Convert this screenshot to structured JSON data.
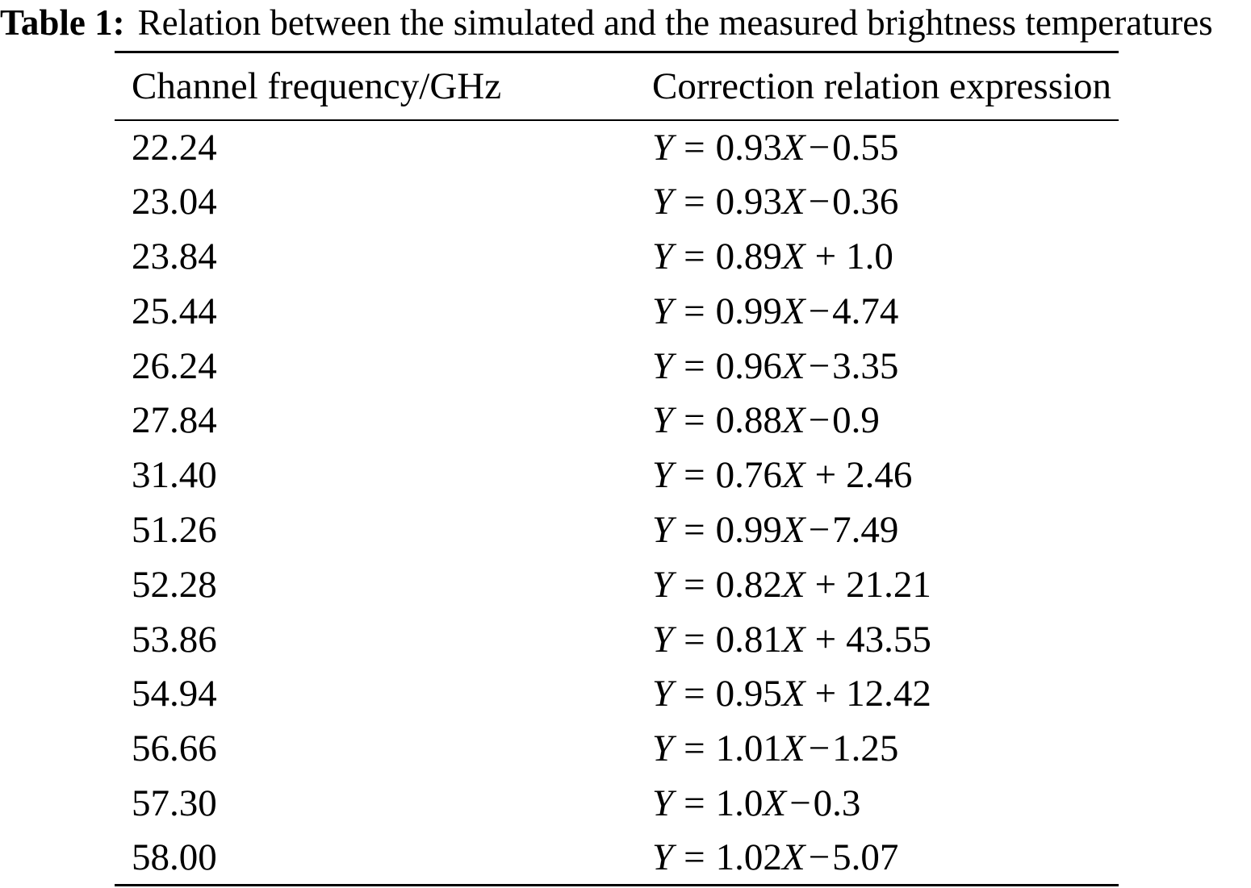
{
  "caption": {
    "label": "Table 1:",
    "text": "Relation between the simulated and the measured brightness temperatures"
  },
  "table": {
    "headers": [
      "Channel frequency/GHz",
      "Correction relation expression"
    ],
    "symbols": {
      "y": "Y",
      "equals": "=",
      "x": "X"
    },
    "rows": [
      {
        "freq": "22.24",
        "slope": "0.93",
        "sign": "−",
        "intercept": "0.55"
      },
      {
        "freq": "23.04",
        "slope": "0.93",
        "sign": "−",
        "intercept": "0.36"
      },
      {
        "freq": "23.84",
        "slope": "0.89",
        "sign": "+",
        "intercept": "1.0"
      },
      {
        "freq": "25.44",
        "slope": "0.99",
        "sign": "−",
        "intercept": "4.74"
      },
      {
        "freq": "26.24",
        "slope": "0.96",
        "sign": "−",
        "intercept": "3.35"
      },
      {
        "freq": "27.84",
        "slope": "0.88",
        "sign": "−",
        "intercept": "0.9"
      },
      {
        "freq": "31.40",
        "slope": "0.76",
        "sign": "+",
        "intercept": "2.46"
      },
      {
        "freq": "51.26",
        "slope": "0.99",
        "sign": "−",
        "intercept": "7.49"
      },
      {
        "freq": "52.28",
        "slope": "0.82",
        "sign": "+",
        "intercept": "21.21"
      },
      {
        "freq": "53.86",
        "slope": "0.81",
        "sign": "+",
        "intercept": "43.55"
      },
      {
        "freq": "54.94",
        "slope": "0.95",
        "sign": "+",
        "intercept": "12.42"
      },
      {
        "freq": "56.66",
        "slope": "1.01",
        "sign": "−",
        "intercept": "1.25"
      },
      {
        "freq": "57.30",
        "slope": "1.0",
        "sign": "−",
        "intercept": "0.3"
      },
      {
        "freq": "58.00",
        "slope": "1.02",
        "sign": "−",
        "intercept": "5.07"
      }
    ]
  }
}
